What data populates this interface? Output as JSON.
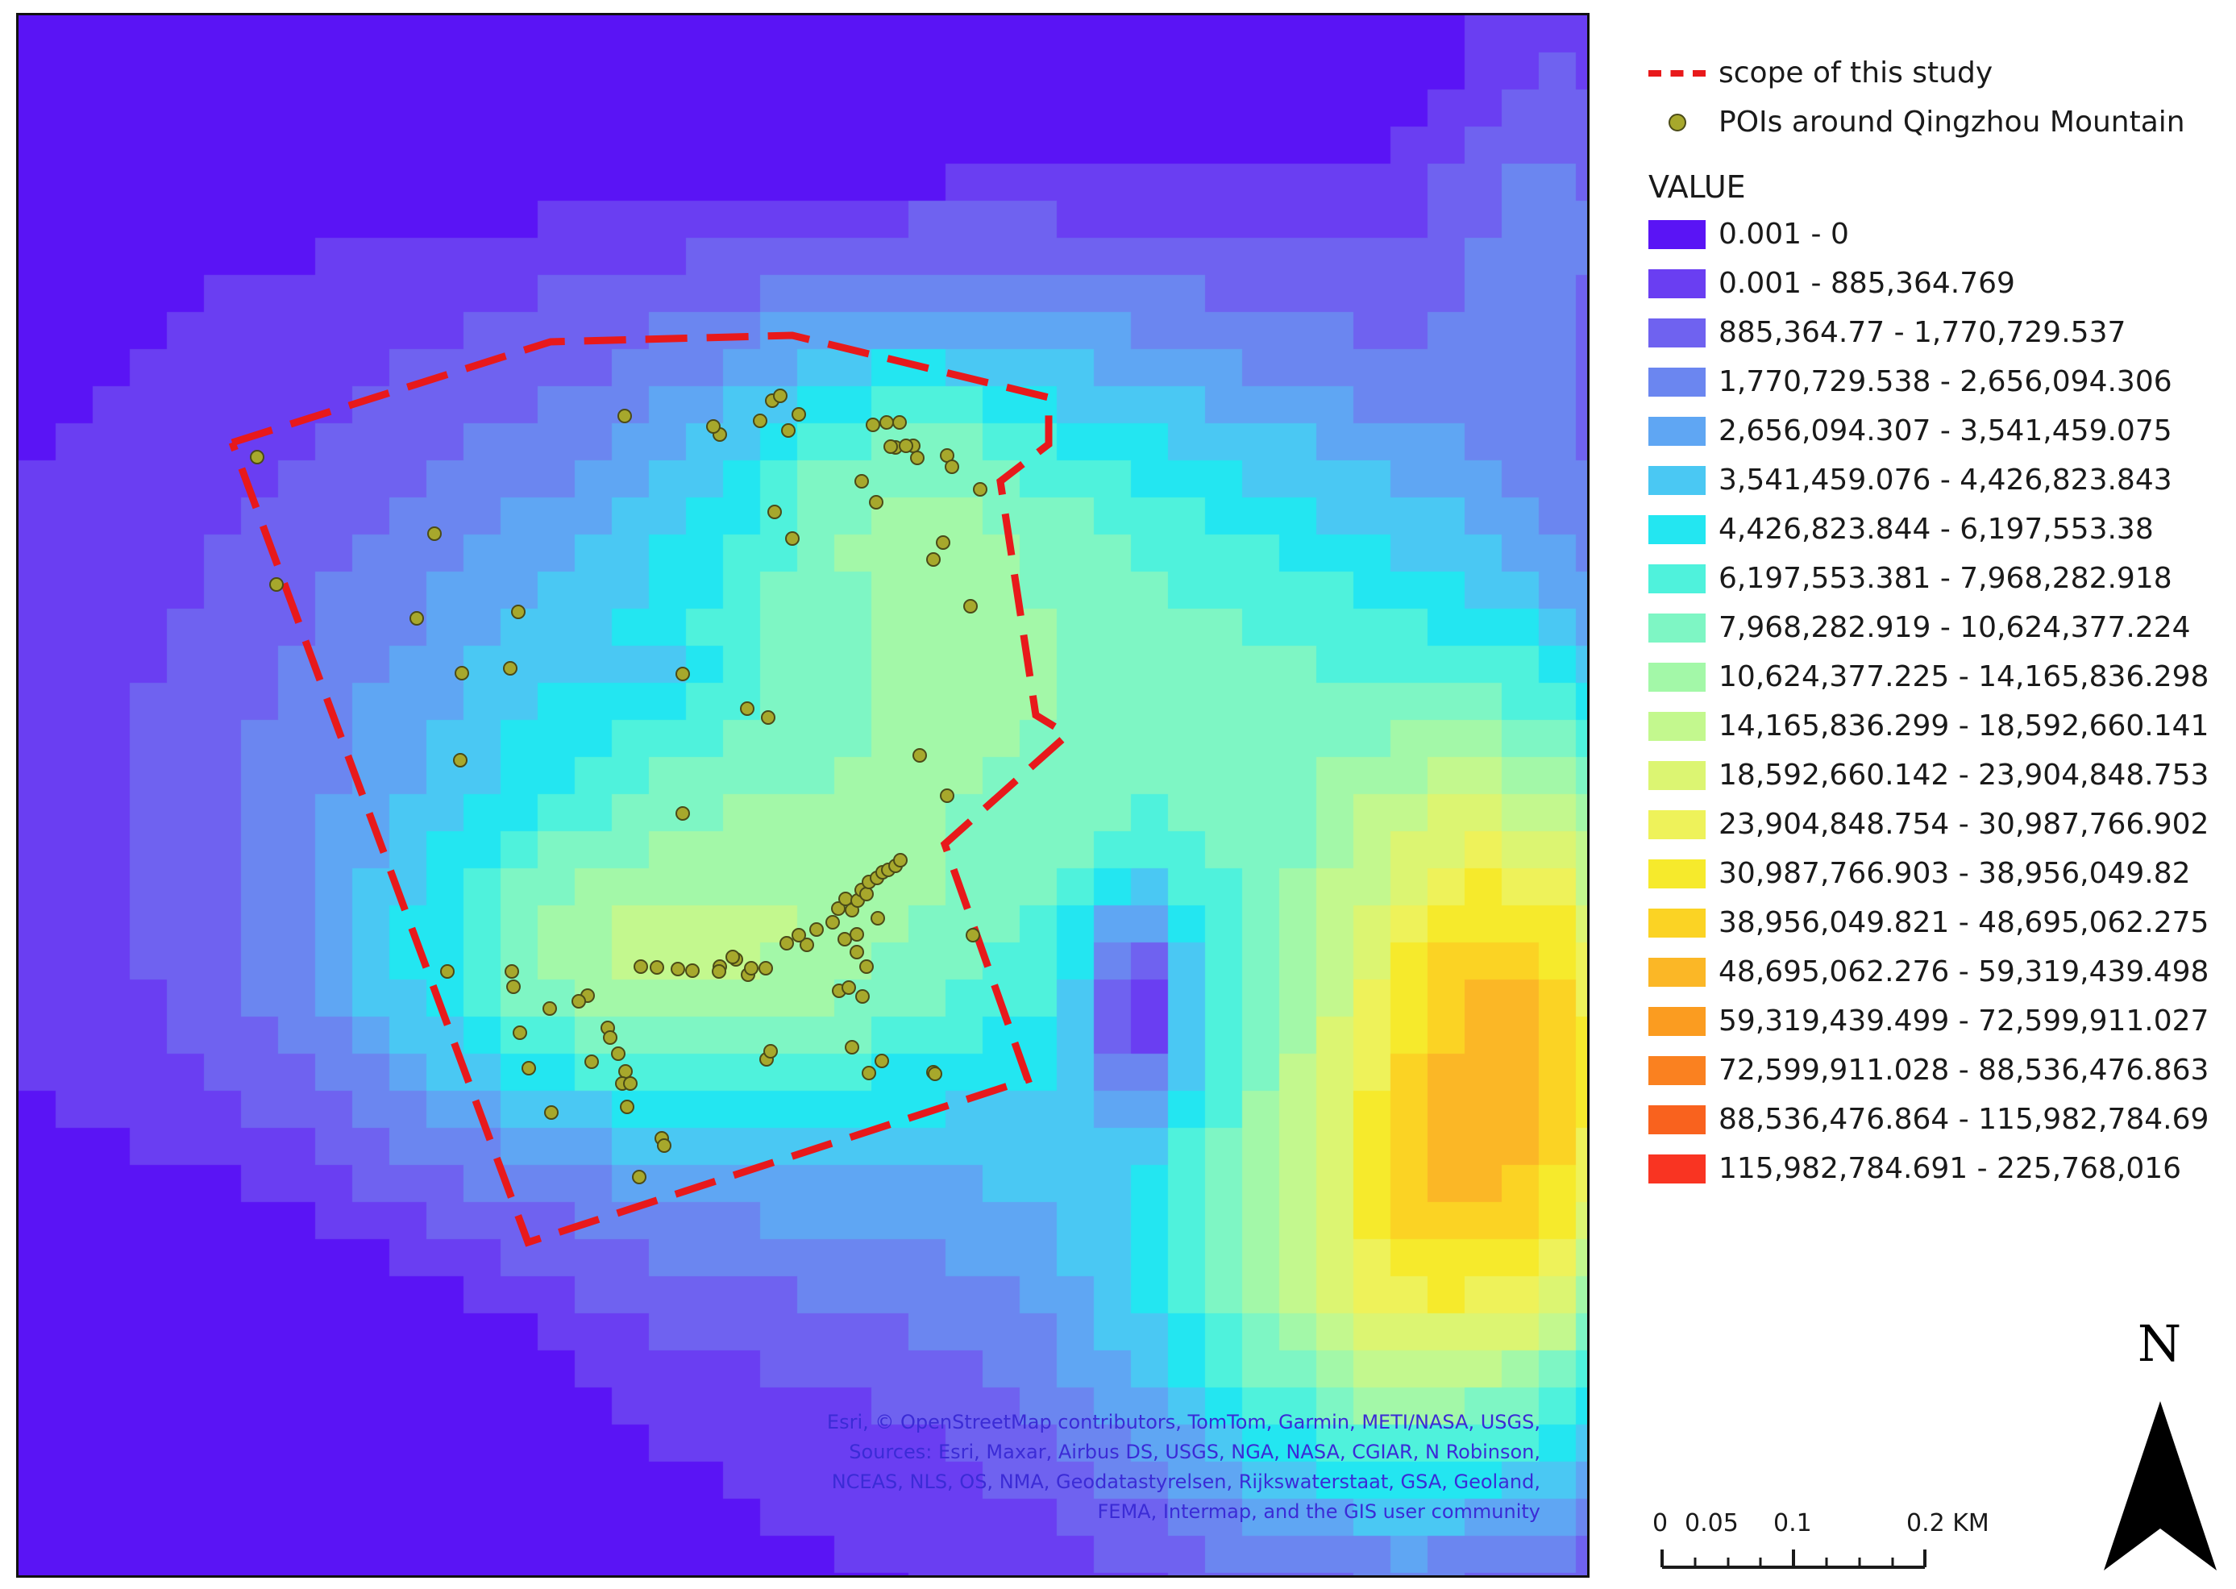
{
  "map": {
    "attribution_lines": [
      "Esri, © OpenStreetMap contributors, TomTom, Garmin, METI/NASA, USGS,",
      "Sources: Esri, Maxar, Airbus DS, USGS, NGA, NASA, CGIAR, N Robinson,",
      "NCEAS, NLS, OS, NMA, Geodatastyrelsen, Rijkswaterstaat, GSA, Geoland,",
      "FEMA, Intermap, and the GIS user community"
    ]
  },
  "legend": {
    "scope_label": "scope of this study",
    "scope_color": "#e8191b",
    "pois_label": "POIs around Qingzhou Mountain",
    "poi_color": "#a7a82c",
    "value_title": "VALUE",
    "classes": [
      {
        "label": "0.001 - 0",
        "color": "#5a14f5"
      },
      {
        "label": "0.001 - 885,364.769",
        "color": "#6a3ef2"
      },
      {
        "label": "885,364.77 - 1,770,729.537",
        "color": "#6f62f0"
      },
      {
        "label": "1,770,729.538 - 2,656,094.306",
        "color": "#6b86f0"
      },
      {
        "label": "2,656,094.307 - 3,541,459.075",
        "color": "#5fa6f3"
      },
      {
        "label": "3,541,459.076 - 4,426,823.843",
        "color": "#4ac8f3"
      },
      {
        "label": "4,426,823.844 - 6,197,553.38",
        "color": "#23e6f1"
      },
      {
        "label": "6,197,553.381 - 7,968,282.918",
        "color": "#4ff2dc"
      },
      {
        "label": "7,968,282.919 - 10,624,377.224",
        "color": "#7ef6c4"
      },
      {
        "label": "10,624,377.225 - 14,165,836.298",
        "color": "#a3f8a8"
      },
      {
        "label": "14,165,836.299 - 18,592,660.141",
        "color": "#c3f88e"
      },
      {
        "label": "18,592,660.142 - 23,904,848.753",
        "color": "#dcf572"
      },
      {
        "label": "23,904,848.754 - 30,987,766.902",
        "color": "#eef25a"
      },
      {
        "label": "30,987,766.903 - 38,956,049.82",
        "color": "#f6ea2c"
      },
      {
        "label": "38,956,049.821 - 48,695,062.275",
        "color": "#fbd324"
      },
      {
        "label": "48,695,062.276 - 59,319,439.498",
        "color": "#fbb726"
      },
      {
        "label": "59,319,439.499 - 72,599,911.027",
        "color": "#fb9c20"
      },
      {
        "label": "72,599,911.028 - 88,536,476.863",
        "color": "#fa8120"
      },
      {
        "label": "88,536,476.864 - 115,982,784.69",
        "color": "#f9621e"
      },
      {
        "label": "115,982,784.691 - 225,768,016",
        "color": "#f93422"
      }
    ]
  },
  "scale_bar": {
    "labels": [
      "0",
      "0.05",
      "0.1",
      "0.2 KM"
    ],
    "values_km": [
      0,
      0.05,
      0.1,
      0.2
    ]
  },
  "north_arrow": {
    "label": "N"
  }
}
